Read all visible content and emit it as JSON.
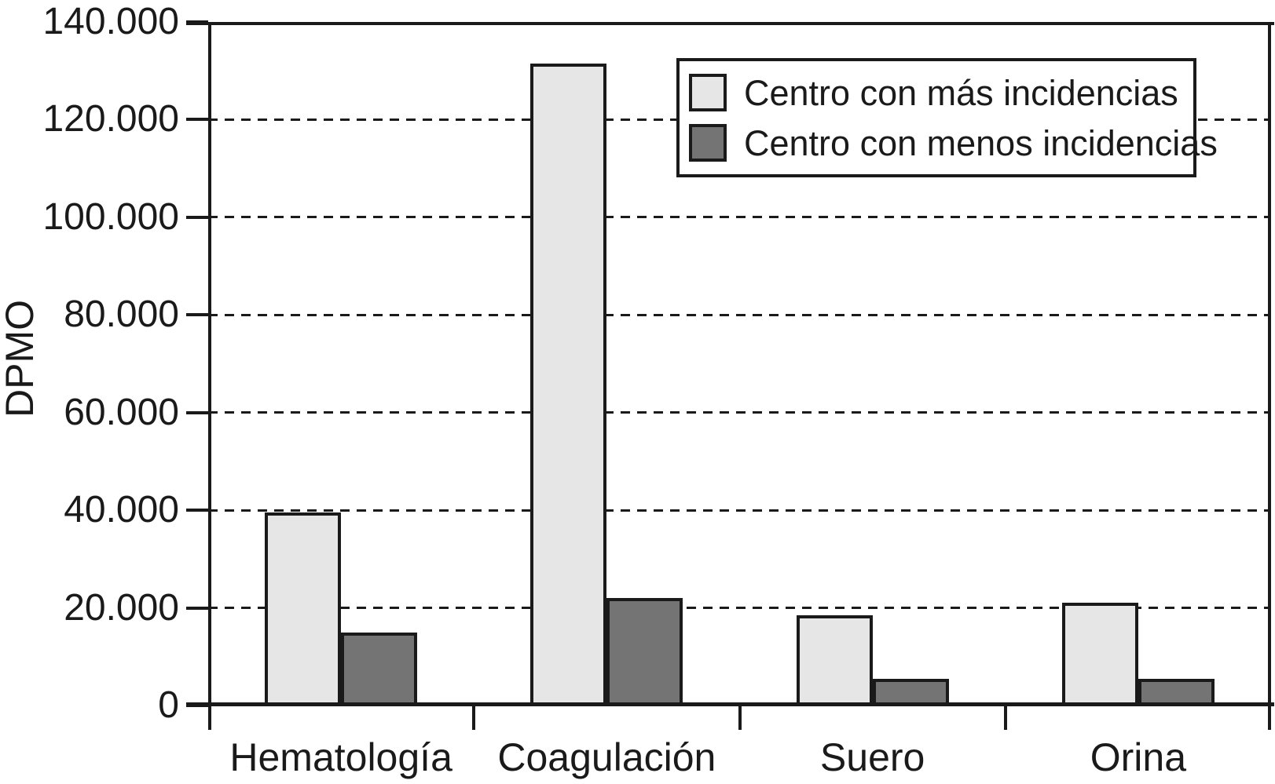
{
  "chart_data": {
    "type": "bar",
    "title": "",
    "xlabel": "",
    "ylabel": "DPMO",
    "categories": [
      "Hematología",
      "Coagulación",
      "Suero",
      "Orina"
    ],
    "series": [
      {
        "name": "Centro con más incidencias",
        "color": "#e6e6e6",
        "values": [
          39500,
          131500,
          18500,
          21000
        ]
      },
      {
        "name": "Centro con menos incidencias",
        "color": "#747474",
        "values": [
          15000,
          22000,
          5500,
          5500
        ]
      }
    ],
    "ylim": [
      0,
      140000
    ],
    "y_tick_values": [
      0,
      20000,
      40000,
      60000,
      80000,
      100000,
      120000,
      140000
    ],
    "y_tick_labels": [
      "0",
      "20.000",
      "40.000",
      "60.000",
      "80.000",
      "100.000",
      "120.000",
      "140.000"
    ],
    "grid": "horizontal dashed lines at every 20.000",
    "legend_position": "top-right inside plot",
    "axis_color": "#1a1a1a"
  }
}
